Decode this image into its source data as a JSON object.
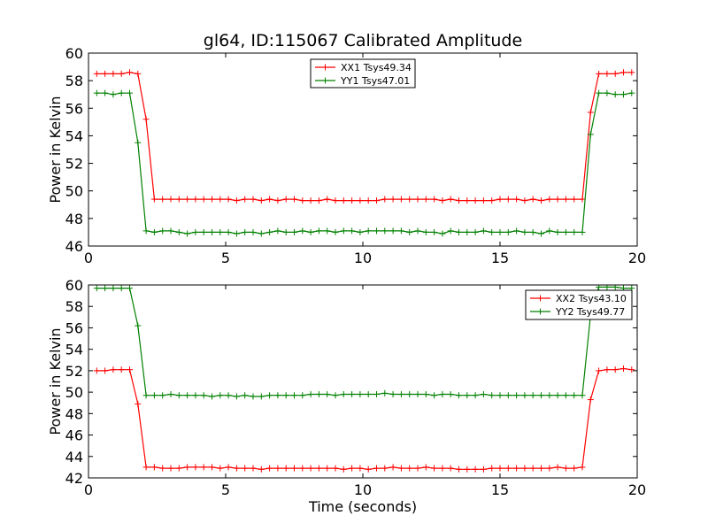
{
  "chart_data": [
    {
      "type": "line",
      "title": "gl64, ID:115067 Calibrated Amplitude",
      "xlabel": "",
      "ylabel": "Power in Kelvin",
      "xlim": [
        0,
        20
      ],
      "ylim": [
        46,
        60
      ],
      "xticks": [
        0,
        5,
        10,
        15,
        20
      ],
      "yticks": [
        46,
        48,
        50,
        52,
        54,
        56,
        58,
        60
      ],
      "legend_position": "top-center",
      "series": [
        {
          "name": "XX1 Tsys49.34",
          "color": "#ff0000",
          "x": [
            0.3,
            0.6,
            0.9,
            1.2,
            1.5,
            1.8,
            2.1,
            2.4,
            2.7,
            3.0,
            3.3,
            3.6,
            3.9,
            4.2,
            4.5,
            4.8,
            5.1,
            5.4,
            5.7,
            6.0,
            6.3,
            6.6,
            6.9,
            7.2,
            7.5,
            7.8,
            8.1,
            8.4,
            8.7,
            9.0,
            9.3,
            9.6,
            9.9,
            10.2,
            10.5,
            10.8,
            11.1,
            11.4,
            11.7,
            12.0,
            12.3,
            12.6,
            12.9,
            13.2,
            13.5,
            13.8,
            14.1,
            14.4,
            14.7,
            15.0,
            15.3,
            15.6,
            15.9,
            16.2,
            16.5,
            16.8,
            17.1,
            17.4,
            17.7,
            18.0,
            18.3,
            18.6,
            18.9,
            19.2,
            19.5,
            19.8
          ],
          "values": [
            58.5,
            58.5,
            58.5,
            58.5,
            58.6,
            58.5,
            55.2,
            49.4,
            49.4,
            49.4,
            49.4,
            49.4,
            49.4,
            49.4,
            49.4,
            49.4,
            49.4,
            49.3,
            49.4,
            49.4,
            49.3,
            49.4,
            49.3,
            49.4,
            49.4,
            49.3,
            49.3,
            49.3,
            49.4,
            49.3,
            49.3,
            49.3,
            49.3,
            49.3,
            49.3,
            49.4,
            49.4,
            49.4,
            49.4,
            49.4,
            49.4,
            49.4,
            49.3,
            49.4,
            49.3,
            49.3,
            49.3,
            49.3,
            49.3,
            49.4,
            49.4,
            49.4,
            49.3,
            49.4,
            49.3,
            49.4,
            49.4,
            49.4,
            49.4,
            49.4,
            55.7,
            58.5,
            58.5,
            58.5,
            58.6,
            58.6
          ]
        },
        {
          "name": "YY1 Tsys47.01",
          "color": "#008000",
          "x": [
            0.3,
            0.6,
            0.9,
            1.2,
            1.5,
            1.8,
            2.1,
            2.4,
            2.7,
            3.0,
            3.3,
            3.6,
            3.9,
            4.2,
            4.5,
            4.8,
            5.1,
            5.4,
            5.7,
            6.0,
            6.3,
            6.6,
            6.9,
            7.2,
            7.5,
            7.8,
            8.1,
            8.4,
            8.7,
            9.0,
            9.3,
            9.6,
            9.9,
            10.2,
            10.5,
            10.8,
            11.1,
            11.4,
            11.7,
            12.0,
            12.3,
            12.6,
            12.9,
            13.2,
            13.5,
            13.8,
            14.1,
            14.4,
            14.7,
            15.0,
            15.3,
            15.6,
            15.9,
            16.2,
            16.5,
            16.8,
            17.1,
            17.4,
            17.7,
            18.0,
            18.3,
            18.6,
            18.9,
            19.2,
            19.5,
            19.8
          ],
          "values": [
            57.1,
            57.1,
            57.0,
            57.1,
            57.1,
            53.5,
            47.1,
            47.0,
            47.1,
            47.1,
            47.0,
            46.9,
            47.0,
            47.0,
            47.0,
            47.0,
            47.0,
            46.9,
            47.0,
            47.0,
            46.9,
            47.0,
            47.1,
            47.0,
            47.0,
            47.1,
            47.0,
            47.1,
            47.1,
            47.0,
            47.1,
            47.1,
            47.0,
            47.1,
            47.1,
            47.1,
            47.1,
            47.1,
            47.0,
            47.1,
            47.0,
            47.0,
            46.9,
            47.1,
            47.0,
            47.0,
            47.0,
            47.1,
            47.0,
            47.0,
            47.0,
            47.1,
            47.0,
            47.0,
            46.9,
            47.1,
            47.0,
            47.0,
            47.0,
            47.0,
            54.1,
            57.1,
            57.1,
            57.0,
            57.0,
            57.1
          ]
        }
      ]
    },
    {
      "type": "line",
      "title": "",
      "xlabel": "Time (seconds)",
      "ylabel": "Power in Kelvin",
      "xlim": [
        0,
        20
      ],
      "ylim": [
        42,
        60
      ],
      "xticks": [
        0,
        5,
        10,
        15,
        20
      ],
      "yticks": [
        42,
        44,
        46,
        48,
        50,
        52,
        54,
        56,
        58,
        60
      ],
      "legend_position": "top-right",
      "series": [
        {
          "name": "XX2 Tsys43.10",
          "color": "#ff0000",
          "x": [
            0.3,
            0.6,
            0.9,
            1.2,
            1.5,
            1.8,
            2.1,
            2.4,
            2.7,
            3.0,
            3.3,
            3.6,
            3.9,
            4.2,
            4.5,
            4.8,
            5.1,
            5.4,
            5.7,
            6.0,
            6.3,
            6.6,
            6.9,
            7.2,
            7.5,
            7.8,
            8.1,
            8.4,
            8.7,
            9.0,
            9.3,
            9.6,
            9.9,
            10.2,
            10.5,
            10.8,
            11.1,
            11.4,
            11.7,
            12.0,
            12.3,
            12.6,
            12.9,
            13.2,
            13.5,
            13.8,
            14.1,
            14.4,
            14.7,
            15.0,
            15.3,
            15.6,
            15.9,
            16.2,
            16.5,
            16.8,
            17.1,
            17.4,
            17.7,
            18.0,
            18.3,
            18.6,
            18.9,
            19.2,
            19.5,
            19.8
          ],
          "values": [
            52.0,
            52.0,
            52.1,
            52.1,
            52.1,
            48.9,
            43.0,
            43.0,
            42.9,
            42.9,
            42.9,
            43.0,
            43.0,
            43.0,
            43.0,
            42.9,
            43.0,
            42.9,
            42.9,
            42.9,
            42.8,
            42.9,
            42.9,
            42.9,
            42.9,
            42.9,
            42.9,
            42.9,
            42.9,
            42.9,
            42.8,
            42.9,
            42.9,
            42.8,
            42.9,
            42.9,
            43.0,
            42.9,
            42.9,
            42.9,
            43.0,
            42.9,
            42.9,
            42.9,
            42.8,
            42.8,
            42.8,
            42.8,
            42.9,
            42.9,
            42.9,
            42.9,
            42.9,
            42.9,
            42.9,
            42.9,
            43.0,
            42.9,
            42.9,
            43.0,
            49.3,
            52.0,
            52.1,
            52.1,
            52.2,
            52.1
          ]
        },
        {
          "name": "YY2 Tsys49.77",
          "color": "#008000",
          "x": [
            0.3,
            0.6,
            0.9,
            1.2,
            1.5,
            1.8,
            2.1,
            2.4,
            2.7,
            3.0,
            3.3,
            3.6,
            3.9,
            4.2,
            4.5,
            4.8,
            5.1,
            5.4,
            5.7,
            6.0,
            6.3,
            6.6,
            6.9,
            7.2,
            7.5,
            7.8,
            8.1,
            8.4,
            8.7,
            9.0,
            9.3,
            9.6,
            9.9,
            10.2,
            10.5,
            10.8,
            11.1,
            11.4,
            11.7,
            12.0,
            12.3,
            12.6,
            12.9,
            13.2,
            13.5,
            13.8,
            14.1,
            14.4,
            14.7,
            15.0,
            15.3,
            15.6,
            15.9,
            16.2,
            16.5,
            16.8,
            17.1,
            17.4,
            17.7,
            18.0,
            18.3,
            18.6,
            18.9,
            19.2,
            19.5,
            19.8
          ],
          "values": [
            59.7,
            59.7,
            59.7,
            59.7,
            59.7,
            56.2,
            49.7,
            49.7,
            49.7,
            49.8,
            49.7,
            49.7,
            49.7,
            49.7,
            49.6,
            49.7,
            49.7,
            49.6,
            49.7,
            49.6,
            49.6,
            49.7,
            49.7,
            49.7,
            49.7,
            49.7,
            49.8,
            49.8,
            49.8,
            49.7,
            49.8,
            49.8,
            49.8,
            49.8,
            49.8,
            49.9,
            49.8,
            49.8,
            49.8,
            49.8,
            49.8,
            49.7,
            49.8,
            49.8,
            49.7,
            49.7,
            49.7,
            49.8,
            49.7,
            49.7,
            49.7,
            49.7,
            49.7,
            49.7,
            49.7,
            49.7,
            49.7,
            49.7,
            49.7,
            49.7,
            57.2,
            59.8,
            59.8,
            59.8,
            59.7,
            59.7
          ]
        }
      ]
    }
  ]
}
